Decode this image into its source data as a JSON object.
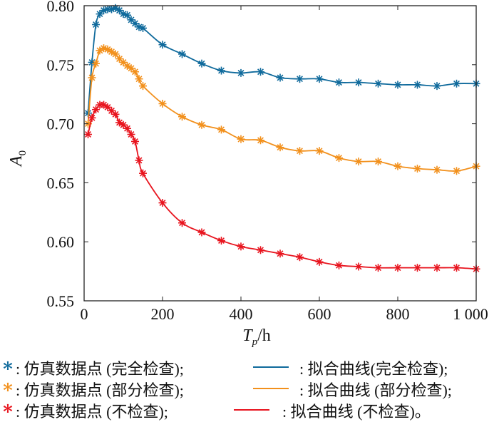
{
  "chart_data": {
    "type": "line",
    "xlabel_main": "T",
    "xlabel_sub": "p",
    "xlabel_unit": "/h",
    "ylabel_main": "A",
    "ylabel_sub": "0",
    "xlim": [
      0,
      1000
    ],
    "ylim": [
      0.55,
      0.8
    ],
    "xticks": [
      0,
      200,
      400,
      600,
      800,
      1000
    ],
    "xtick_labels": [
      "0",
      "200",
      "400",
      "600",
      "800",
      "1 000"
    ],
    "yticks": [
      0.55,
      0.6,
      0.65,
      0.7,
      0.75,
      0.8
    ],
    "ytick_labels": [
      "0.55",
      "0.60",
      "0.65",
      "0.70",
      "0.75",
      "0.80"
    ],
    "grid": false,
    "x": [
      10,
      20,
      30,
      40,
      50,
      60,
      70,
      80,
      90,
      100,
      110,
      120,
      130,
      140,
      150,
      200,
      250,
      300,
      350,
      400,
      450,
      500,
      550,
      600,
      650,
      700,
      750,
      800,
      850,
      900,
      950,
      1000
    ],
    "series": [
      {
        "name": "完全检查",
        "color": "#0f6a9c",
        "values": [
          0.709,
          0.752,
          0.784,
          0.793,
          0.796,
          0.797,
          0.797,
          0.798,
          0.796,
          0.793,
          0.792,
          0.788,
          0.785,
          0.782,
          0.781,
          0.767,
          0.759,
          0.751,
          0.745,
          0.743,
          0.744,
          0.739,
          0.738,
          0.738,
          0.735,
          0.735,
          0.734,
          0.733,
          0.733,
          0.732,
          0.734,
          0.734
        ]
      },
      {
        "name": "部分检查",
        "color": "#f2901c",
        "values": [
          0.7,
          0.739,
          0.751,
          0.762,
          0.764,
          0.763,
          0.761,
          0.759,
          0.755,
          0.752,
          0.749,
          0.747,
          0.744,
          0.738,
          0.732,
          0.717,
          0.706,
          0.699,
          0.695,
          0.687,
          0.686,
          0.68,
          0.677,
          0.677,
          0.671,
          0.668,
          0.668,
          0.664,
          0.662,
          0.661,
          0.66,
          0.664
        ]
      },
      {
        "name": "不检查",
        "color": "#e8141e",
        "values": [
          0.691,
          0.705,
          0.712,
          0.716,
          0.716,
          0.714,
          0.711,
          0.708,
          0.701,
          0.699,
          0.696,
          0.691,
          0.685,
          0.669,
          0.658,
          0.633,
          0.616,
          0.608,
          0.601,
          0.596,
          0.593,
          0.59,
          0.587,
          0.583,
          0.58,
          0.579,
          0.578,
          0.578,
          0.578,
          0.578,
          0.578,
          0.577
        ]
      }
    ],
    "legend": [
      {
        "marker_text": "仿真数据点 (完全检查);",
        "line_text": "拟合曲线(完全检查);"
      },
      {
        "marker_text": "仿真数据点 (部分检查);",
        "line_text": "拟合曲线 (部分检查);"
      },
      {
        "marker_text": "仿真数据点 (不检查);",
        "line_text": "拟合曲线 (不检查)。"
      }
    ],
    "legend_placement": "bottom",
    "legend_separator": ":",
    "marker_symbol": "∗"
  }
}
